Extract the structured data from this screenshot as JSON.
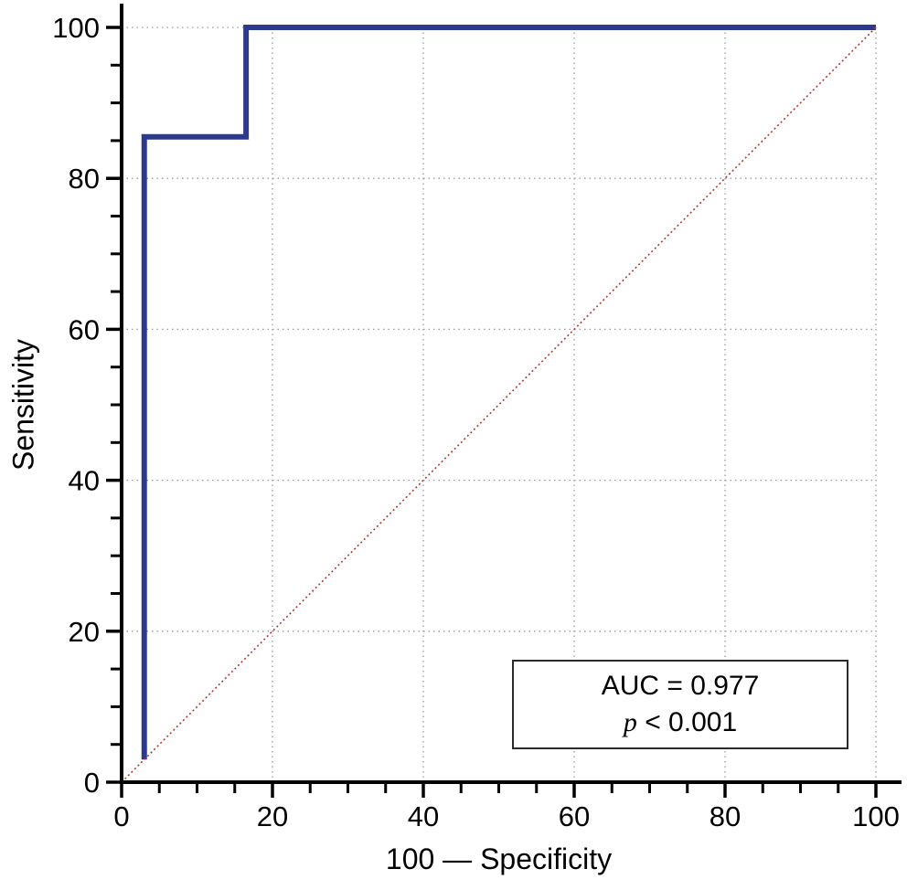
{
  "chart_data": {
    "type": "line",
    "xlabel": "100 — Specificity",
    "ylabel": "Sensitivity",
    "xlim": [
      0,
      100
    ],
    "ylim": [
      0,
      100
    ],
    "x_major_ticks": [
      0,
      20,
      40,
      60,
      80,
      100
    ],
    "y_major_ticks": [
      0,
      20,
      40,
      60,
      80,
      100
    ],
    "minor_tick_step": 5,
    "grid": "dotted",
    "legend": "none",
    "series": [
      {
        "name": "roc-curve",
        "color": "#2b3a8c",
        "width": 6,
        "dash": "",
        "points": [
          [
            3,
            3
          ],
          [
            3,
            85.5
          ],
          [
            16.5,
            85.5
          ],
          [
            16.5,
            100
          ],
          [
            100,
            100
          ]
        ]
      },
      {
        "name": "reference-diagonal",
        "color": "#b0392e",
        "width": 1.6,
        "dash": "2 3",
        "points": [
          [
            0,
            0
          ],
          [
            100,
            100
          ]
        ]
      }
    ],
    "annotation": {
      "auc_text": "AUC = 0.977",
      "p_symbol": "p",
      "p_value_text": " < 0.001"
    }
  },
  "colors": {
    "axis": "#000000",
    "grid": "#9a9a9a",
    "background": "#ffffff",
    "annotation_border": "#2b2b2b"
  }
}
